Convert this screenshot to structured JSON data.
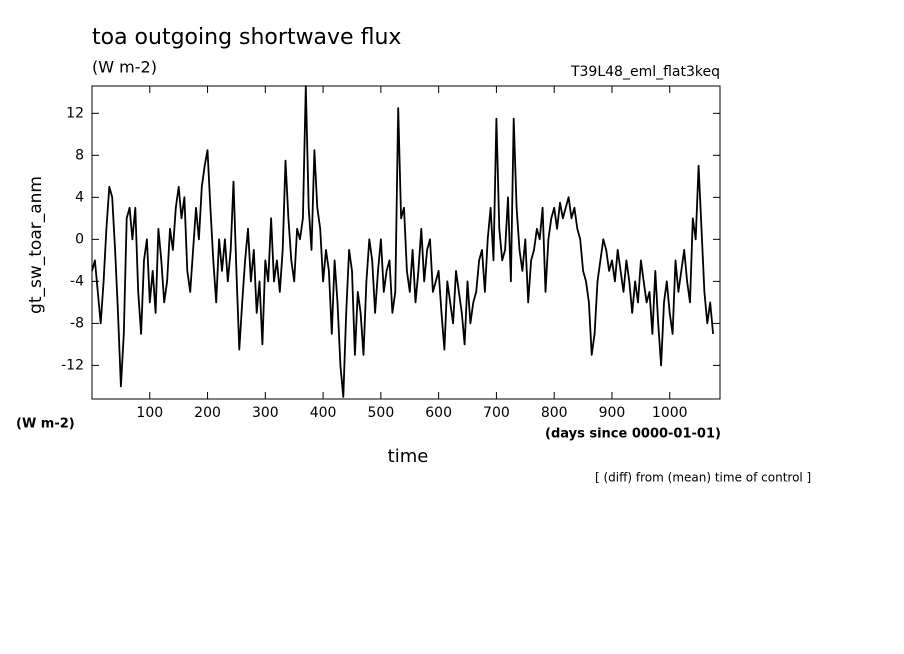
{
  "chart_data": {
    "type": "line",
    "title": "toa outgoing shortwave flux",
    "subtitle": "(W m-2)",
    "annotation": "T39L48_eml_flat3keq",
    "ylabel": "gt_sw_toar_anm",
    "yunits": "(W m-2)",
    "xunits": "(days since 0000-01-01)",
    "xlabel": "time",
    "note": "[ (diff) from (mean) time of control ]",
    "xlim": [
      0,
      1087
    ],
    "ylim": [
      -15.2,
      14.6
    ],
    "xticks": [
      100,
      200,
      300,
      400,
      500,
      600,
      700,
      800,
      900,
      1000
    ],
    "yticks": [
      -12,
      -8,
      -4,
      0,
      4,
      8,
      12
    ],
    "series": [
      {
        "color": "#000000",
        "x": [
          0,
          5,
          10,
          15,
          20,
          25,
          30,
          35,
          40,
          45,
          50,
          55,
          60,
          65,
          70,
          75,
          80,
          85,
          90,
          95,
          100,
          105,
          110,
          115,
          120,
          125,
          130,
          135,
          140,
          145,
          150,
          155,
          160,
          165,
          170,
          175,
          180,
          185,
          190,
          195,
          200,
          205,
          210,
          215,
          220,
          225,
          230,
          235,
          240,
          245,
          250,
          255,
          260,
          265,
          270,
          275,
          280,
          285,
          290,
          295,
          300,
          305,
          310,
          315,
          320,
          325,
          330,
          335,
          340,
          345,
          350,
          355,
          360,
          365,
          370,
          375,
          380,
          385,
          390,
          395,
          400,
          405,
          410,
          415,
          420,
          425,
          430,
          435,
          440,
          445,
          450,
          455,
          460,
          465,
          470,
          475,
          480,
          485,
          490,
          495,
          500,
          505,
          510,
          515,
          520,
          525,
          530,
          535,
          540,
          545,
          550,
          555,
          560,
          565,
          570,
          575,
          580,
          585,
          590,
          595,
          600,
          605,
          610,
          615,
          620,
          625,
          630,
          635,
          640,
          645,
          650,
          655,
          660,
          665,
          670,
          675,
          680,
          685,
          690,
          695,
          700,
          705,
          710,
          715,
          720,
          725,
          730,
          735,
          740,
          745,
          750,
          755,
          760,
          765,
          770,
          775,
          780,
          785,
          790,
          795,
          800,
          805,
          810,
          815,
          820,
          825,
          830,
          835,
          840,
          845,
          850,
          855,
          860,
          865,
          870,
          875,
          880,
          885,
          890,
          895,
          900,
          905,
          910,
          915,
          920,
          925,
          930,
          935,
          940,
          945,
          950,
          955,
          960,
          965,
          970,
          975,
          980,
          985,
          990,
          995,
          1000,
          1005,
          1010,
          1015,
          1020,
          1025,
          1030,
          1035,
          1040,
          1045,
          1050,
          1055,
          1060,
          1065,
          1070,
          1075
        ],
        "values": [
          -3,
          -2,
          -5,
          -8,
          -4,
          1,
          5,
          4,
          -1,
          -7,
          -14,
          -9,
          2,
          3,
          0,
          3,
          -5,
          -9,
          -2,
          0,
          -6,
          -3,
          -7,
          1,
          -2,
          -6,
          -4,
          1,
          -1,
          3,
          5,
          2,
          4,
          -3,
          -5,
          -1,
          3,
          0,
          5,
          7,
          8.5,
          3,
          -2,
          -6,
          0,
          -3,
          0,
          -4,
          -1,
          5.5,
          -3,
          -10.5,
          -6,
          -2,
          1,
          -4,
          -1,
          -7,
          -4,
          -10,
          -2,
          -4,
          2,
          -4,
          -2,
          -5,
          -1,
          7.5,
          2,
          -2,
          -4,
          1,
          0,
          2,
          14.6,
          3,
          -1,
          8.5,
          3,
          1,
          -4,
          -1,
          -3,
          -9,
          -2,
          -6,
          -12,
          -15,
          -7,
          -1,
          -3,
          -11,
          -5,
          -7,
          -11,
          -4,
          0,
          -2,
          -7,
          -3,
          0,
          -5,
          -3,
          -2,
          -7,
          -5,
          12.5,
          2,
          3,
          -3,
          -5,
          -1,
          -6,
          -3,
          1,
          -4,
          -1,
          0,
          -5,
          -4,
          -3,
          -7,
          -10.5,
          -4,
          -6,
          -8,
          -3,
          -5,
          -7,
          -10,
          -4,
          -8,
          -6,
          -5,
          -2,
          -1,
          -5,
          0,
          3,
          -2,
          11.5,
          1,
          -2,
          -1,
          4,
          -4,
          11.5,
          3,
          -1,
          -3,
          0,
          -6,
          -2,
          -1,
          1,
          0,
          3,
          -5,
          0,
          2,
          3,
          1,
          3.5,
          2,
          3,
          4,
          2,
          3,
          1,
          0,
          -3,
          -4,
          -6,
          -11,
          -9,
          -4,
          -2,
          0,
          -1,
          -3,
          -2,
          -4,
          -1,
          -3,
          -5,
          -2,
          -4,
          -7,
          -4,
          -6,
          -2,
          -4,
          -6,
          -5,
          -9,
          -3,
          -8,
          -12,
          -6,
          -4,
          -7,
          -9,
          -2,
          -5,
          -3,
          -1,
          -4,
          -6,
          2,
          0,
          7,
          1,
          -5,
          -8,
          -6,
          -9
        ]
      }
    ]
  }
}
